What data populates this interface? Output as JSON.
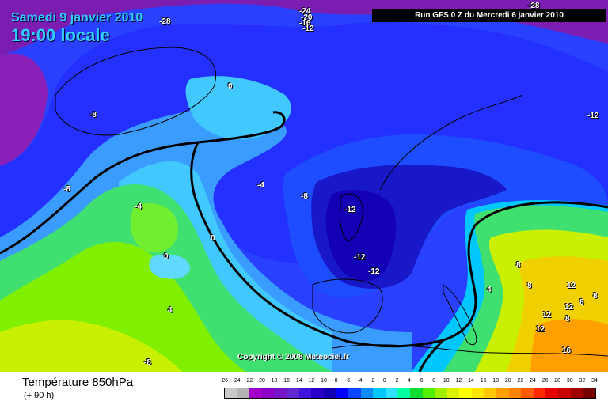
{
  "header": {
    "date": "Samedi 9 janvier 2010",
    "time": "19:00 locale",
    "run": "Run GFS 0 Z du Mercredi 6 janvier 2010"
  },
  "copyright": "Copyright © 2008 Meteociel.fr",
  "footer": {
    "variable": "Température 850hPa",
    "lead": "(+ 90 h)"
  },
  "legend": {
    "ticks": [
      "-26",
      "-24",
      "-22",
      "-20",
      "-18",
      "-16",
      "-14",
      "-12",
      "-10",
      "-8",
      "-6",
      "-4",
      "-2",
      "0",
      "2",
      "4",
      "6",
      "8",
      "10",
      "12",
      "14",
      "16",
      "18",
      "20",
      "22",
      "24",
      "26",
      "28",
      "30",
      "32",
      "34"
    ],
    "colors": [
      "#c8c8c8",
      "#b4b4b4",
      "#a000c8",
      "#8c00c8",
      "#7814c8",
      "#6428d2",
      "#4014dc",
      "#2800c8",
      "#1400b4",
      "#0000ff",
      "#0a46ff",
      "#0a8cff",
      "#00c8ff",
      "#30e0ff",
      "#00ffa0",
      "#10dc32",
      "#50f000",
      "#a0f000",
      "#dcf000",
      "#ffff00",
      "#ffe600",
      "#ffc800",
      "#ffa000",
      "#ff8200",
      "#ff5a00",
      "#ff2800",
      "#e60000",
      "#c80000",
      "#a00000",
      "#780000"
    ]
  },
  "map": {
    "background": "#2a40ff",
    "regions": [
      {
        "name": "arctic-purple",
        "color": "#7a1db0"
      },
      {
        "name": "greenland-blue",
        "color": "#1e4cff"
      },
      {
        "name": "atlantic-cyan",
        "color": "#3a9cff"
      },
      {
        "name": "atlantic-green",
        "color": "#40e070"
      },
      {
        "name": "europe-cold-core",
        "color": "#1818c8"
      },
      {
        "name": "mediterranean-warm",
        "color": "#f0d000"
      }
    ]
  },
  "contour_labels": [
    {
      "text": "-28"
    },
    {
      "text": "-24"
    },
    {
      "text": "-20"
    },
    {
      "text": "-16"
    },
    {
      "text": "-12"
    },
    {
      "text": "-28"
    },
    {
      "text": "0"
    },
    {
      "text": "-8"
    },
    {
      "text": "-8"
    },
    {
      "text": "-4"
    },
    {
      "text": "-4"
    },
    {
      "text": "0"
    },
    {
      "text": "0"
    },
    {
      "text": "4"
    },
    {
      "text": "-8"
    },
    {
      "text": "-8"
    },
    {
      "text": "-12"
    },
    {
      "text": "-12"
    },
    {
      "text": "-12"
    },
    {
      "text": "-12"
    },
    {
      "text": "8"
    },
    {
      "text": "4"
    },
    {
      "text": "8"
    },
    {
      "text": "12"
    },
    {
      "text": "8"
    },
    {
      "text": "12"
    },
    {
      "text": "12"
    },
    {
      "text": "8"
    },
    {
      "text": "8"
    },
    {
      "text": "12"
    },
    {
      "text": "16"
    }
  ]
}
